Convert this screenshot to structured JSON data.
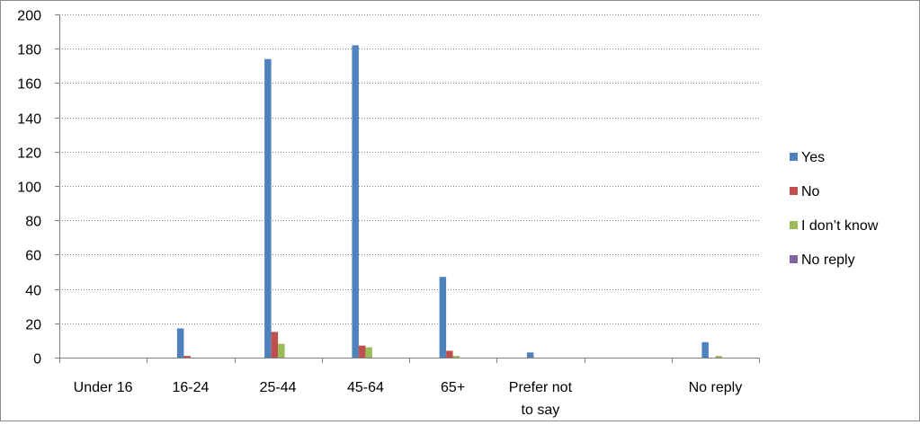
{
  "chart_data": {
    "type": "bar",
    "title": "",
    "xlabel": "",
    "ylabel": "",
    "ylim": [
      0,
      200
    ],
    "yticks": [
      0,
      20,
      40,
      60,
      80,
      100,
      120,
      140,
      160,
      180,
      200
    ],
    "grid": true,
    "legend_position": "right",
    "categories": [
      "Under 16",
      "16-24",
      "25-44",
      "45-64",
      "65+",
      "Prefer not to say",
      "",
      "No reply"
    ],
    "category_label_lines": [
      [
        "Under 16"
      ],
      [
        "16-24"
      ],
      [
        "25-44"
      ],
      [
        "45-64"
      ],
      [
        "65+"
      ],
      [
        "Prefer not",
        "to say"
      ],
      [
        ""
      ],
      [
        "No reply"
      ]
    ],
    "series": [
      {
        "name": "Yes",
        "color": "#4F81BD",
        "values": [
          0,
          17,
          174,
          182,
          47,
          3,
          0,
          9
        ]
      },
      {
        "name": "No",
        "color": "#C0504D",
        "values": [
          0,
          1,
          15,
          7,
          4,
          0,
          0,
          0
        ]
      },
      {
        "name": "I don’t know",
        "color": "#9BBB59",
        "values": [
          0,
          0,
          8,
          6,
          1,
          0,
          0,
          1
        ]
      },
      {
        "name": "No reply",
        "color": "#8064A2",
        "values": [
          0,
          0,
          0,
          0,
          0,
          0,
          0,
          0
        ]
      }
    ]
  }
}
